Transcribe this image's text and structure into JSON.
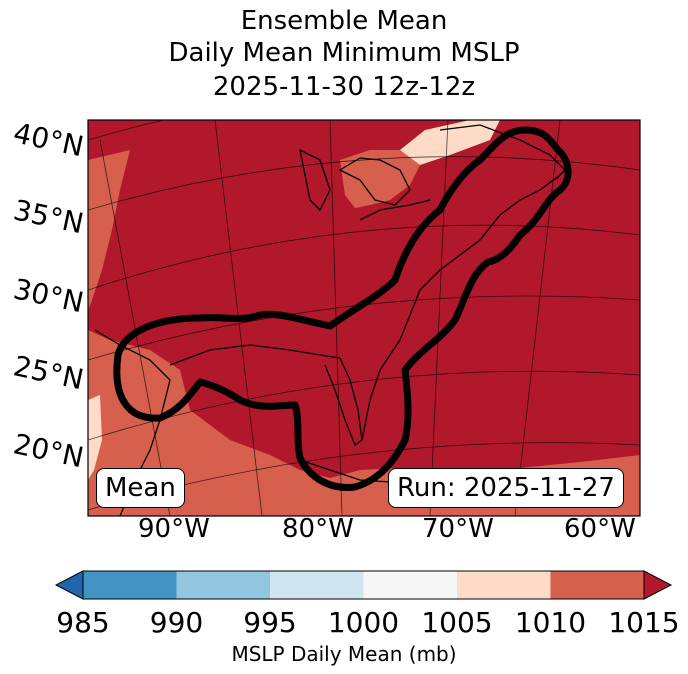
{
  "title": {
    "line1": "Ensemble Mean",
    "line2": "Daily Mean Minimum MSLP",
    "line3": "2025-11-30 12z-12z"
  },
  "map": {
    "lat_labels": [
      "40°N",
      "35°N",
      "30°N",
      "25°N",
      "20°N"
    ],
    "lon_labels": [
      "90°W",
      "80°W",
      "70°W",
      "60°W"
    ],
    "mean_box": "Mean",
    "run_box": "Run: 2025-11-27",
    "colors": {
      "fill_1015": "#b2182b",
      "fill_1010": "#d6604d",
      "fill_1005": "#fddbc7",
      "contour": "#000000",
      "grid": "#000000",
      "coast": "#000000"
    }
  },
  "colorbar": {
    "ticks": [
      "985",
      "990",
      "995",
      "1000",
      "1005",
      "1010",
      "1015"
    ],
    "colors": [
      "#2166ac",
      "#4393c3",
      "#92c5de",
      "#d1e5f0",
      "#f7f7f7",
      "#fddbc7",
      "#d6604d",
      "#b2182b"
    ],
    "label": "MSLP Daily Mean (mb)"
  }
}
